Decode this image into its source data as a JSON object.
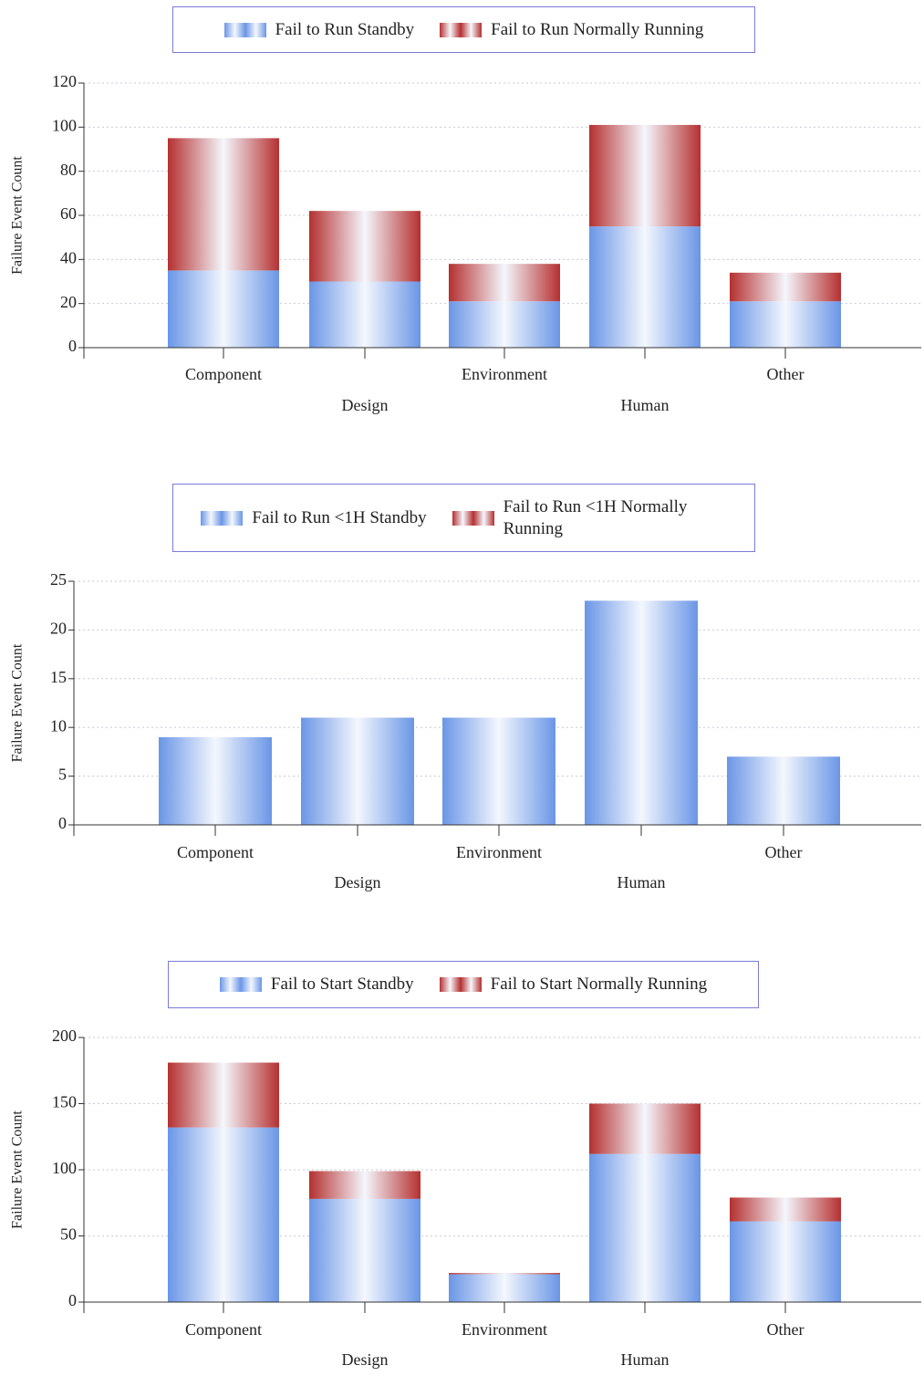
{
  "chart_data": [
    {
      "type": "bar",
      "stacked": true,
      "y_label": "Failure Event Count",
      "categories": [
        "Component",
        "Design",
        "Environment",
        "Human",
        "Other"
      ],
      "series": [
        {
          "name": "Fail to Run Standby",
          "color": "#6a96e6",
          "values": [
            35,
            30,
            21,
            55,
            21
          ]
        },
        {
          "name": "Fail to Run Normally Running",
          "color": "#b53030",
          "values": [
            60,
            32,
            17,
            46,
            13
          ]
        }
      ],
      "ylim": [
        0,
        120
      ],
      "yticks": [
        0,
        20,
        40,
        60,
        80,
        100,
        120
      ],
      "grid": true
    },
    {
      "type": "bar",
      "stacked": true,
      "y_label": "Failure Event Count",
      "categories": [
        "Component",
        "Design",
        "Environment",
        "Human",
        "Other"
      ],
      "series": [
        {
          "name": "Fail to Run <1H Standby",
          "color": "#6a96e6",
          "values": [
            9,
            11,
            11,
            23,
            7
          ]
        },
        {
          "name": "Fail to Run <1H Normally Running",
          "color": "#b53030",
          "values": [
            0,
            0,
            0,
            0,
            0
          ]
        }
      ],
      "ylim": [
        0,
        25
      ],
      "yticks": [
        0,
        5,
        10,
        15,
        20,
        25
      ],
      "grid": true
    },
    {
      "type": "bar",
      "stacked": true,
      "y_label": "Failure Event Count",
      "categories": [
        "Component",
        "Design",
        "Environment",
        "Human",
        "Other"
      ],
      "series": [
        {
          "name": "Fail to Start Standby",
          "color": "#6a96e6",
          "values": [
            132,
            78,
            21,
            112,
            61
          ]
        },
        {
          "name": "Fail to Start Normally Running",
          "color": "#b53030",
          "values": [
            49,
            21,
            1,
            38,
            18
          ]
        }
      ],
      "ylim": [
        0,
        200
      ],
      "yticks": [
        0,
        50,
        100,
        150,
        200
      ],
      "grid": true
    }
  ]
}
